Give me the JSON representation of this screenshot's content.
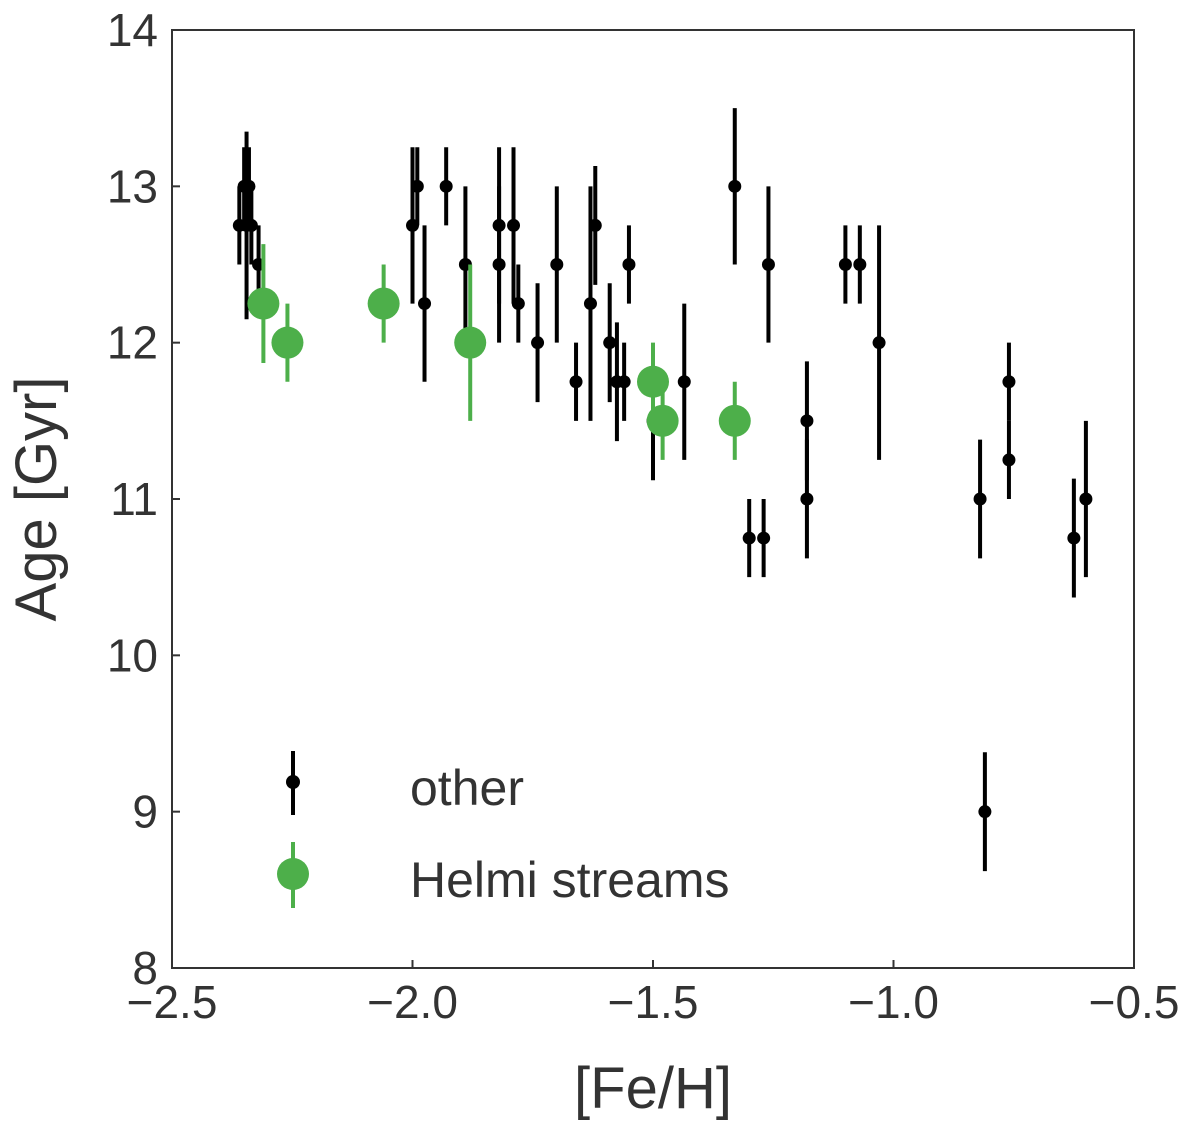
{
  "chart_data": {
    "type": "scatter",
    "xlabel": "[Fe/H]",
    "ylabel": "Age [Gyr]",
    "xlim": [
      -2.5,
      -0.5
    ],
    "ylim": [
      8,
      14
    ],
    "x_ticks": [
      -2.5,
      -2.0,
      -1.5,
      -1.0,
      -0.5
    ],
    "x_tick_labels": [
      "−2.5",
      "−2.0",
      "−1.5",
      "−1.0",
      "−0.5"
    ],
    "y_ticks": [
      8,
      9,
      10,
      11,
      12,
      13,
      14
    ],
    "y_tick_labels": [
      "8",
      "9",
      "10",
      "11",
      "12",
      "13",
      "14"
    ],
    "grid": false,
    "legend_position": "lower-left",
    "series": [
      {
        "name": "other",
        "color": "#000000",
        "marker": "small-circle",
        "points": [
          {
            "x": -2.36,
            "y": 12.75,
            "err": 0.25
          },
          {
            "x": -2.35,
            "y": 13.0,
            "err": 0.25
          },
          {
            "x": -2.345,
            "y": 12.75,
            "err": 0.6
          },
          {
            "x": -2.34,
            "y": 13.0,
            "err": 0.25
          },
          {
            "x": -2.335,
            "y": 12.75,
            "err": 0.25
          },
          {
            "x": -2.32,
            "y": 12.5,
            "err": 0.25
          },
          {
            "x": -2.0,
            "y": 12.75,
            "err": 0.5
          },
          {
            "x": -1.99,
            "y": 13.0,
            "err": 0.25
          },
          {
            "x": -1.975,
            "y": 12.25,
            "err": 0.5
          },
          {
            "x": -1.93,
            "y": 13.0,
            "err": 0.25
          },
          {
            "x": -1.89,
            "y": 12.5,
            "err": 0.5
          },
          {
            "x": -1.82,
            "y": 12.75,
            "err": 0.5
          },
          {
            "x": -1.82,
            "y": 12.5,
            "err": 0.5
          },
          {
            "x": -1.79,
            "y": 12.75,
            "err": 0.5
          },
          {
            "x": -1.78,
            "y": 12.25,
            "err": 0.25
          },
          {
            "x": -1.74,
            "y": 12.0,
            "err": 0.38
          },
          {
            "x": -1.7,
            "y": 12.5,
            "err": 0.5
          },
          {
            "x": -1.66,
            "y": 11.75,
            "err": 0.25
          },
          {
            "x": -1.63,
            "y": 12.25,
            "err": 0.75
          },
          {
            "x": -1.62,
            "y": 12.75,
            "err": 0.38
          },
          {
            "x": -1.59,
            "y": 12.0,
            "err": 0.38
          },
          {
            "x": -1.575,
            "y": 11.75,
            "err": 0.38
          },
          {
            "x": -1.56,
            "y": 11.75,
            "err": 0.25
          },
          {
            "x": -1.55,
            "y": 12.5,
            "err": 0.25
          },
          {
            "x": -1.5,
            "y": 11.5,
            "err": 0.38
          },
          {
            "x": -1.435,
            "y": 11.75,
            "err": 0.5
          },
          {
            "x": -1.33,
            "y": 13.0,
            "err": 0.5
          },
          {
            "x": -1.3,
            "y": 10.75,
            "err": 0.25
          },
          {
            "x": -1.27,
            "y": 10.75,
            "err": 0.25
          },
          {
            "x": -1.26,
            "y": 12.5,
            "err": 0.5
          },
          {
            "x": -1.18,
            "y": 11.5,
            "err": 0.38
          },
          {
            "x": -1.18,
            "y": 11.0,
            "err": 0.38
          },
          {
            "x": -1.1,
            "y": 12.5,
            "err": 0.25
          },
          {
            "x": -1.07,
            "y": 12.5,
            "err": 0.25
          },
          {
            "x": -1.03,
            "y": 12.0,
            "err": 0.75
          },
          {
            "x": -0.82,
            "y": 11.0,
            "err": 0.38
          },
          {
            "x": -0.81,
            "y": 9.0,
            "err": 0.38
          },
          {
            "x": -0.76,
            "y": 11.75,
            "err": 0.25
          },
          {
            "x": -0.76,
            "y": 11.25,
            "err": 0.25
          },
          {
            "x": -0.625,
            "y": 10.75,
            "err": 0.38
          },
          {
            "x": -0.6,
            "y": 11.0,
            "err": 0.5
          }
        ]
      },
      {
        "name": "Helmi streams",
        "color": "#4daf4a",
        "marker": "large-circle",
        "points": [
          {
            "x": -2.31,
            "y": 12.25,
            "err": 0.38
          },
          {
            "x": -2.26,
            "y": 12.0,
            "err": 0.25
          },
          {
            "x": -2.06,
            "y": 12.25,
            "err": 0.25
          },
          {
            "x": -1.88,
            "y": 12.0,
            "err": 0.5
          },
          {
            "x": -1.5,
            "y": 11.75,
            "err": 0.25
          },
          {
            "x": -1.48,
            "y": 11.5,
            "err": 0.25
          },
          {
            "x": -1.33,
            "y": 11.5,
            "err": 0.25
          }
        ]
      }
    ]
  }
}
